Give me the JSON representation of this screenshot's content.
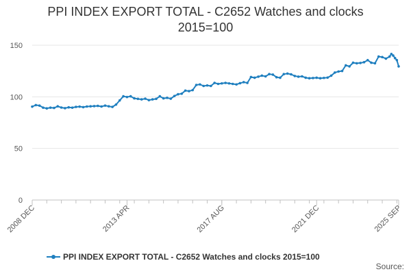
{
  "chart_data": {
    "type": "line",
    "title_line1": "PPI INDEX EXPORT TOTAL - C2652 Watches and clocks",
    "title_line2": "2015=100",
    "xlabel": "",
    "ylabel": "",
    "ylim": [
      0,
      150
    ],
    "yticks": [
      0,
      50,
      100,
      150
    ],
    "x_start": "2008-12",
    "x_end": "2025-09",
    "x_tick_labels": [
      {
        "date": "2008-12",
        "label": "2008 DEC"
      },
      {
        "date": "2013-04",
        "label": "2013 APR"
      },
      {
        "date": "2017-08",
        "label": "2017 AUG"
      },
      {
        "date": "2021-12",
        "label": "2021 DEC"
      },
      {
        "date": "2025-09",
        "label": "2025 SEP"
      }
    ],
    "grid": true,
    "legend_position": "bottom",
    "line_color": "#1f7fbf",
    "series": [
      {
        "name": "PPI INDEX EXPORT TOTAL - C2652 Watches and clocks 2015=100",
        "points": [
          [
            "2008-12",
            90.5
          ],
          [
            "2009-02",
            92.0
          ],
          [
            "2009-04",
            91.5
          ],
          [
            "2009-06",
            89.5
          ],
          [
            "2009-08",
            88.8
          ],
          [
            "2009-10",
            89.5
          ],
          [
            "2009-12",
            89.2
          ],
          [
            "2010-02",
            90.8
          ],
          [
            "2010-04",
            89.6
          ],
          [
            "2010-06",
            89.0
          ],
          [
            "2010-08",
            89.8
          ],
          [
            "2010-10",
            89.5
          ],
          [
            "2010-12",
            90.2
          ],
          [
            "2011-02",
            90.5
          ],
          [
            "2011-04",
            90.0
          ],
          [
            "2011-06",
            90.6
          ],
          [
            "2011-08",
            90.8
          ],
          [
            "2011-10",
            91.0
          ],
          [
            "2011-12",
            91.2
          ],
          [
            "2012-02",
            90.6
          ],
          [
            "2012-04",
            91.5
          ],
          [
            "2012-06",
            90.8
          ],
          [
            "2012-08",
            90.2
          ],
          [
            "2012-10",
            92.5
          ],
          [
            "2012-12",
            96.5
          ],
          [
            "2013-02",
            100.5
          ],
          [
            "2013-04",
            99.8
          ],
          [
            "2013-06",
            100.5
          ],
          [
            "2013-08",
            98.5
          ],
          [
            "2013-10",
            98.0
          ],
          [
            "2013-12",
            97.5
          ],
          [
            "2014-02",
            98.2
          ],
          [
            "2014-04",
            96.8
          ],
          [
            "2014-06",
            97.5
          ],
          [
            "2014-08",
            98.0
          ],
          [
            "2014-10",
            100.5
          ],
          [
            "2014-12",
            98.5
          ],
          [
            "2015-02",
            99.0
          ],
          [
            "2015-04",
            98.2
          ],
          [
            "2015-06",
            100.8
          ],
          [
            "2015-08",
            102.5
          ],
          [
            "2015-10",
            103.0
          ],
          [
            "2015-12",
            106.0
          ],
          [
            "2016-02",
            105.5
          ],
          [
            "2016-04",
            106.5
          ],
          [
            "2016-06",
            111.5
          ],
          [
            "2016-08",
            112.0
          ],
          [
            "2016-10",
            110.5
          ],
          [
            "2016-12",
            111.0
          ],
          [
            "2017-02",
            110.5
          ],
          [
            "2017-04",
            113.5
          ],
          [
            "2017-06",
            112.5
          ],
          [
            "2017-08",
            113.0
          ],
          [
            "2017-10",
            113.5
          ],
          [
            "2017-12",
            113.0
          ],
          [
            "2018-02",
            112.5
          ],
          [
            "2018-04",
            112.0
          ],
          [
            "2018-06",
            113.2
          ],
          [
            "2018-08",
            114.2
          ],
          [
            "2018-10",
            113.5
          ],
          [
            "2018-12",
            119.2
          ],
          [
            "2019-02",
            118.5
          ],
          [
            "2019-04",
            119.5
          ],
          [
            "2019-06",
            120.5
          ],
          [
            "2019-08",
            119.8
          ],
          [
            "2019-10",
            122.0
          ],
          [
            "2019-12",
            121.5
          ],
          [
            "2020-02",
            119.0
          ],
          [
            "2020-04",
            118.5
          ],
          [
            "2020-06",
            122.0
          ],
          [
            "2020-08",
            122.5
          ],
          [
            "2020-10",
            121.8
          ],
          [
            "2020-12",
            120.2
          ],
          [
            "2021-02",
            119.5
          ],
          [
            "2021-04",
            119.8
          ],
          [
            "2021-06",
            118.5
          ],
          [
            "2021-08",
            118.0
          ],
          [
            "2021-10",
            118.2
          ],
          [
            "2021-12",
            118.5
          ],
          [
            "2022-02",
            118.0
          ],
          [
            "2022-04",
            118.3
          ],
          [
            "2022-06",
            118.6
          ],
          [
            "2022-08",
            120.5
          ],
          [
            "2022-10",
            123.5
          ],
          [
            "2022-12",
            124.5
          ],
          [
            "2023-02",
            125.0
          ],
          [
            "2023-04",
            130.5
          ],
          [
            "2023-06",
            129.5
          ],
          [
            "2023-08",
            133.0
          ],
          [
            "2023-10",
            132.5
          ],
          [
            "2023-12",
            132.8
          ],
          [
            "2024-02",
            133.5
          ],
          [
            "2024-04",
            135.5
          ],
          [
            "2024-06",
            133.0
          ],
          [
            "2024-08",
            132.5
          ],
          [
            "2024-10",
            139.0
          ],
          [
            "2024-12",
            138.5
          ],
          [
            "2025-02",
            137.0
          ],
          [
            "2025-04",
            139.0
          ],
          [
            "2025-05",
            141.5
          ],
          [
            "2025-06",
            140.0
          ],
          [
            "2025-07",
            137.5
          ],
          [
            "2025-08",
            135.5
          ],
          [
            "2025-09",
            129.5
          ]
        ]
      }
    ]
  },
  "credit": "Source:"
}
